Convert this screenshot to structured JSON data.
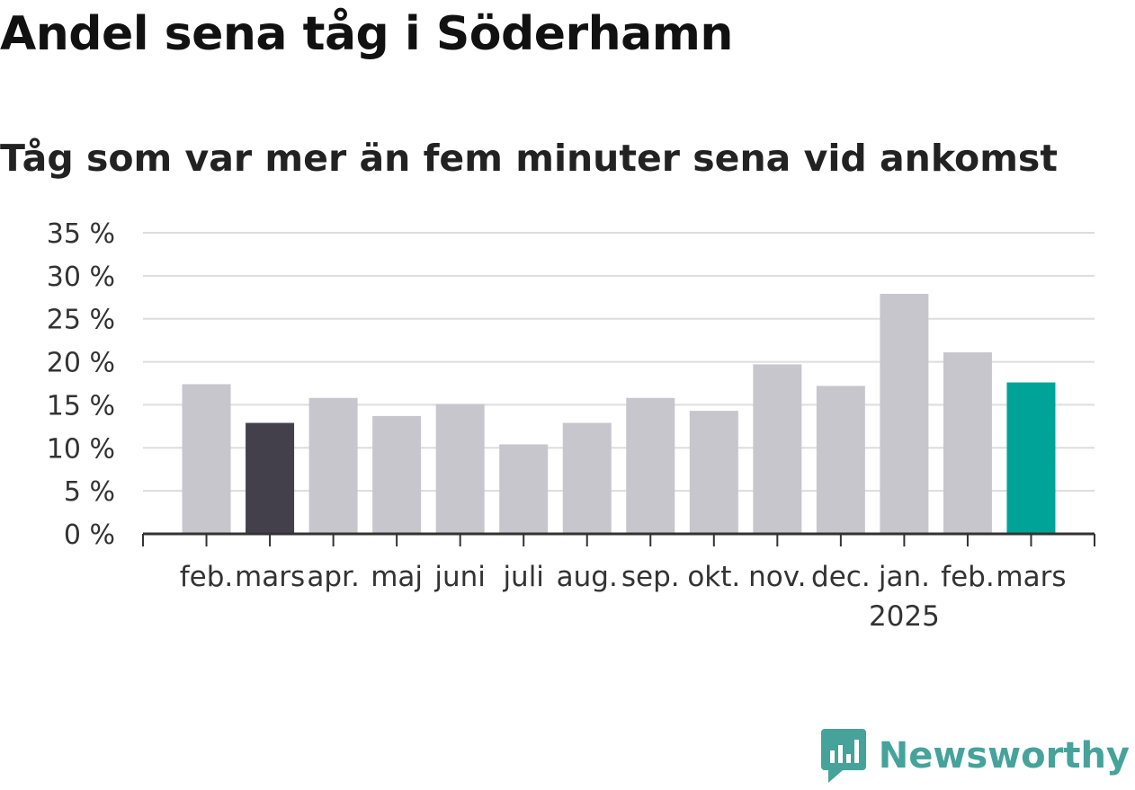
{
  "header": {
    "title": "Andel sena tåg i Söderhamn",
    "subtitle": "Tåg som var mer än fem minuter sena vid ankomst"
  },
  "brand": {
    "name": "Newsworthy",
    "icon": "newsworthy-logo-icon",
    "color": "#45a39b"
  },
  "colors": {
    "bar_default": "#c7c6cd",
    "bar_highlight_prev": "#43404c",
    "bar_highlight_current": "#00a398",
    "grid": "#dddddd",
    "axis": "#333333"
  },
  "chart_data": {
    "type": "bar",
    "title": "Andel sena tåg i Söderhamn",
    "subtitle": "Tåg som var mer än fem minuter sena vid ankomst",
    "xlabel": "",
    "ylabel": "",
    "categories": [
      "feb.",
      "mars",
      "apr.",
      "maj",
      "juni",
      "juli",
      "aug.",
      "sep.",
      "okt.",
      "nov.",
      "dec.",
      "jan.",
      "feb.",
      "mars"
    ],
    "year_labels": [
      {
        "category_index": 11,
        "label": "2025"
      }
    ],
    "values": [
      17.4,
      12.9,
      15.8,
      13.7,
      15.1,
      10.4,
      12.9,
      15.8,
      14.3,
      19.7,
      17.2,
      27.9,
      21.1,
      17.6
    ],
    "highlight": {
      "1": "bar_highlight_prev",
      "13": "bar_highlight_current"
    },
    "y_ticks": [
      0,
      5,
      10,
      15,
      20,
      25,
      30,
      35
    ],
    "y_tick_labels": [
      "0 %",
      "5 %",
      "10 %",
      "15 %",
      "20 %",
      "25 %",
      "30 %",
      "35 %"
    ],
    "ylim": [
      0,
      35
    ],
    "grid": true,
    "legend": "none"
  }
}
